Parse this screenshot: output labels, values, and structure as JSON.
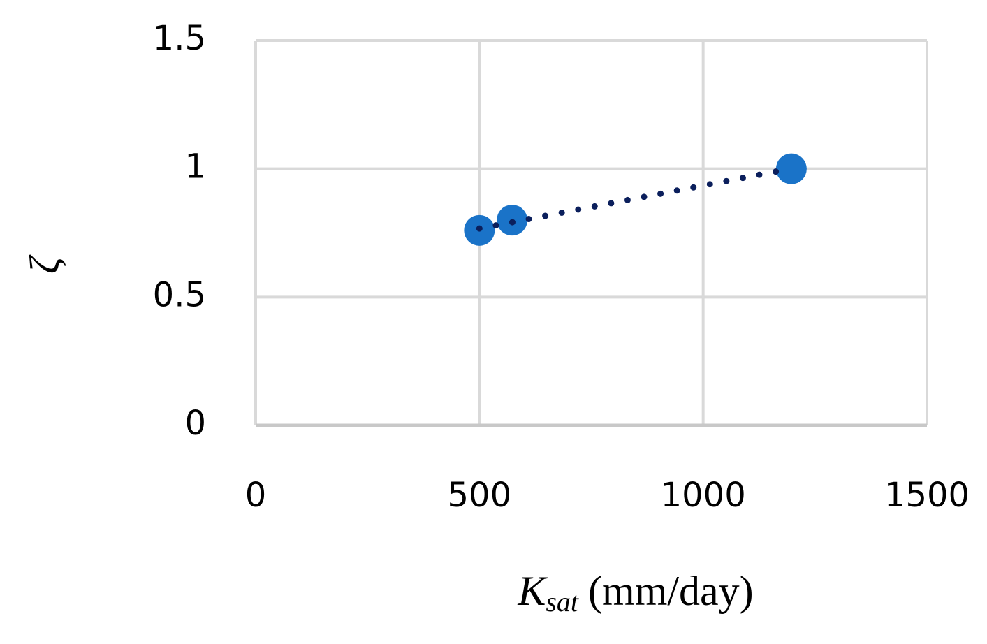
{
  "chart_data": {
    "type": "scatter",
    "x_label": {
      "symbol": "K",
      "subscript": "sat",
      "unit": "(mm/day)"
    },
    "y_label": "ζ",
    "series": [
      {
        "color": "#1a73c8",
        "x": [
          500,
          573,
          1197
        ],
        "values": [
          0.76,
          0.8,
          1.0
        ]
      }
    ],
    "trendline": {
      "type": "linear",
      "color": "#0b1f5c"
    },
    "xlim": [
      0,
      1500
    ],
    "xticks": [
      0,
      500,
      1000,
      1500
    ],
    "ylim": [
      0,
      1.5
    ],
    "yticks": [
      0,
      0.5,
      1,
      1.5
    ],
    "grid": true
  }
}
